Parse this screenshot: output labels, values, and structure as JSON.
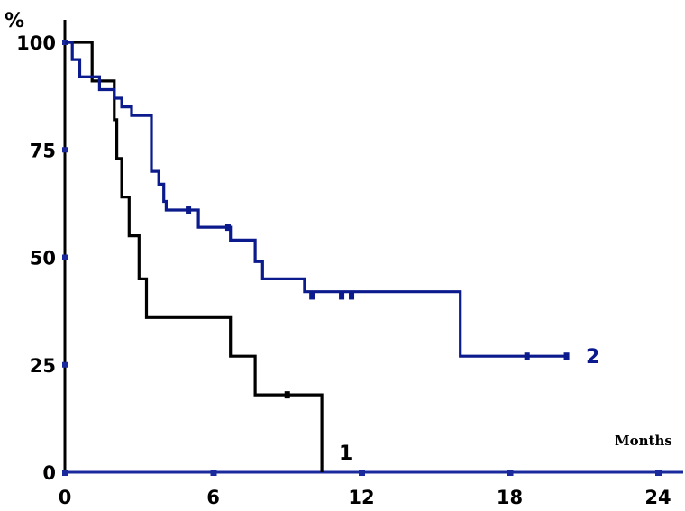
{
  "chart_data": {
    "type": "line",
    "step": true,
    "title": "",
    "ylabel": "%",
    "xlabel": "Months",
    "xlim": [
      0,
      24
    ],
    "ylim": [
      0,
      100
    ],
    "x_ticks": [
      "0",
      "6",
      "12",
      "18",
      "24"
    ],
    "y_ticks": [
      "0",
      "25",
      "50",
      "75",
      "100"
    ],
    "grid": false,
    "series": [
      {
        "name": "1",
        "color": "#000000",
        "points": [
          [
            0,
            100
          ],
          [
            1.1,
            100
          ],
          [
            1.1,
            91
          ],
          [
            2.0,
            91
          ],
          [
            2.0,
            82
          ],
          [
            2.1,
            82
          ],
          [
            2.1,
            73
          ],
          [
            2.3,
            73
          ],
          [
            2.3,
            64
          ],
          [
            2.6,
            64
          ],
          [
            2.6,
            55
          ],
          [
            3.0,
            55
          ],
          [
            3.0,
            45
          ],
          [
            3.3,
            45
          ],
          [
            3.3,
            36
          ],
          [
            6.7,
            36
          ],
          [
            6.7,
            27
          ],
          [
            7.7,
            27
          ],
          [
            7.7,
            18
          ],
          [
            10.4,
            18
          ],
          [
            10.4,
            0
          ]
        ],
        "censored": [
          [
            9.0,
            18
          ]
        ]
      },
      {
        "name": "2",
        "color": "#0b1a8c",
        "points": [
          [
            0,
            100
          ],
          [
            0.3,
            100
          ],
          [
            0.3,
            96
          ],
          [
            0.6,
            96
          ],
          [
            0.6,
            92
          ],
          [
            1.4,
            92
          ],
          [
            1.4,
            89
          ],
          [
            2.0,
            89
          ],
          [
            2.0,
            87
          ],
          [
            2.3,
            87
          ],
          [
            2.3,
            85
          ],
          [
            2.7,
            85
          ],
          [
            2.7,
            83
          ],
          [
            3.5,
            83
          ],
          [
            3.5,
            70
          ],
          [
            3.8,
            70
          ],
          [
            3.8,
            67
          ],
          [
            4.0,
            67
          ],
          [
            4.0,
            63
          ],
          [
            4.1,
            63
          ],
          [
            4.1,
            61
          ],
          [
            5.4,
            61
          ],
          [
            5.4,
            57
          ],
          [
            6.7,
            57
          ],
          [
            6.7,
            54
          ],
          [
            7.7,
            54
          ],
          [
            7.7,
            49
          ],
          [
            8.0,
            49
          ],
          [
            8.0,
            45
          ],
          [
            9.7,
            45
          ],
          [
            9.7,
            42
          ],
          [
            16.0,
            42
          ],
          [
            16.0,
            27
          ],
          [
            20.4,
            27
          ]
        ],
        "censored": [
          [
            5.0,
            61
          ],
          [
            6.6,
            57
          ],
          [
            10.0,
            41
          ],
          [
            11.2,
            41
          ],
          [
            11.6,
            41
          ],
          [
            18.7,
            27
          ],
          [
            20.3,
            27
          ]
        ]
      }
    ]
  }
}
